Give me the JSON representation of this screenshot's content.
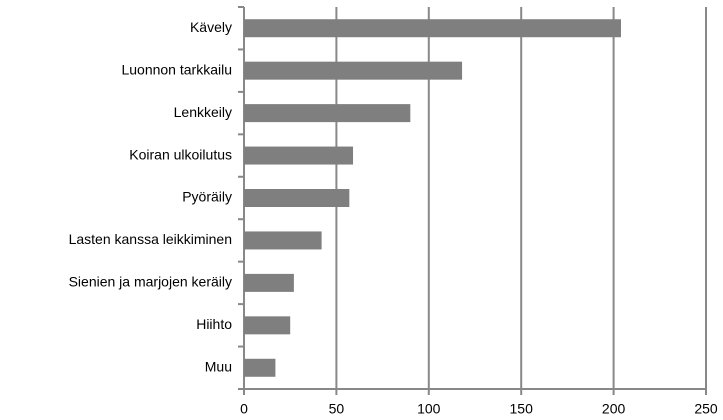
{
  "chart_data": {
    "type": "hbar",
    "categories": [
      "Kävely",
      "Luonnon tarkkailu",
      "Lenkkeily",
      "Koiran ulkoilutus",
      "Pyöräily",
      "Lasten kanssa leikkiminen",
      "Sienien ja marjojen keräily",
      "Hiihto",
      "Muu"
    ],
    "values": [
      204,
      118,
      90,
      59,
      57,
      42,
      27,
      25,
      17
    ],
    "color": "#7f7f7f",
    "xlim": [
      0,
      250
    ],
    "xticks": [
      0,
      50,
      100,
      150,
      200,
      250
    ],
    "grid": true
  }
}
